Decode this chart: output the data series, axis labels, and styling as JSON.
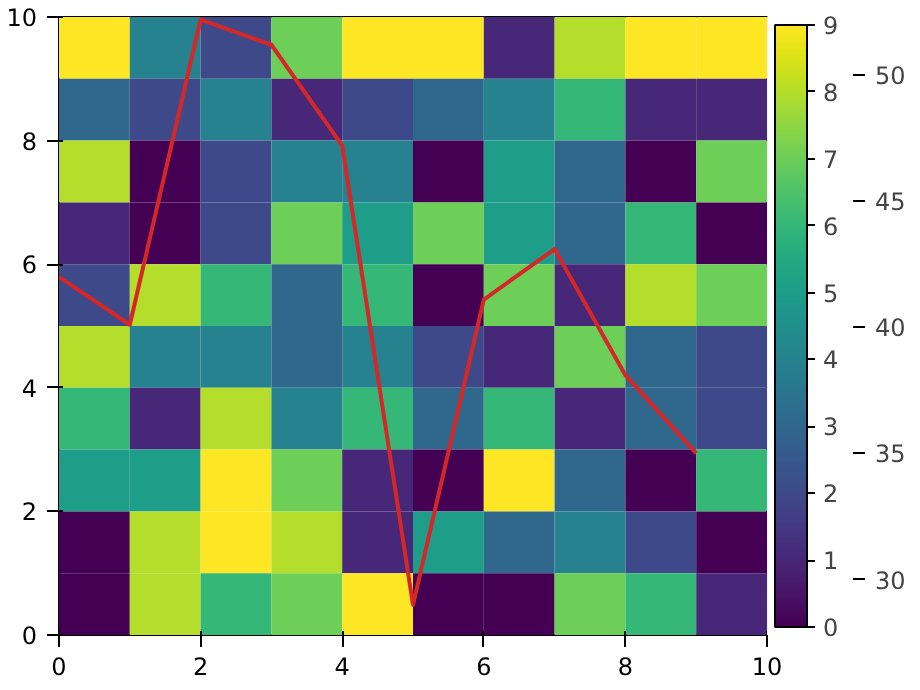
{
  "chart_data": {
    "type": "heatmap",
    "xlim": [
      0,
      10
    ],
    "xticks": [
      0,
      2,
      4,
      6,
      8,
      10
    ],
    "ylim": [
      0,
      10
    ],
    "yticks": [
      0,
      2,
      4,
      6,
      8,
      10
    ],
    "cells": [
      [
        9,
        4,
        2,
        7,
        9,
        9,
        1,
        8,
        9,
        9
      ],
      [
        3,
        2,
        4,
        1,
        2,
        3,
        4,
        6,
        1,
        1
      ],
      [
        8,
        0,
        2,
        4,
        4,
        0,
        5,
        3,
        0,
        7
      ],
      [
        1,
        0,
        2,
        7,
        5,
        7,
        5,
        3,
        6,
        0
      ],
      [
        2,
        8,
        6,
        3,
        6,
        0,
        7,
        1,
        8,
        7
      ],
      [
        8,
        4,
        4,
        3,
        4,
        2,
        1,
        7,
        3,
        2
      ],
      [
        6,
        1,
        8,
        4,
        6,
        3,
        6,
        1,
        3,
        2
      ],
      [
        5,
        5,
        9,
        7,
        1,
        0,
        9,
        3,
        0,
        6
      ],
      [
        0,
        8,
        9,
        8,
        1,
        5,
        3,
        4,
        2,
        0
      ],
      [
        0,
        8,
        6,
        7,
        9,
        0,
        0,
        7,
        6,
        1
      ]
    ],
    "clim": [
      0,
      9
    ],
    "cticks": [
      0,
      1,
      2,
      3,
      4,
      5,
      6,
      7,
      8,
      9
    ],
    "y2lim": [
      27.8,
      52.3
    ],
    "y2ticks": [
      30,
      35,
      40,
      45,
      50
    ],
    "series": [
      {
        "type": "line",
        "axis": "y2",
        "color": "#d62728",
        "x": [
          0,
          1,
          2,
          3,
          4,
          5,
          6,
          7,
          8,
          9
        ],
        "values": [
          42.0,
          40.1,
          52.2,
          51.2,
          47.2,
          29.0,
          41.1,
          43.1,
          38.1,
          35.0
        ]
      }
    ],
    "grid": false
  }
}
